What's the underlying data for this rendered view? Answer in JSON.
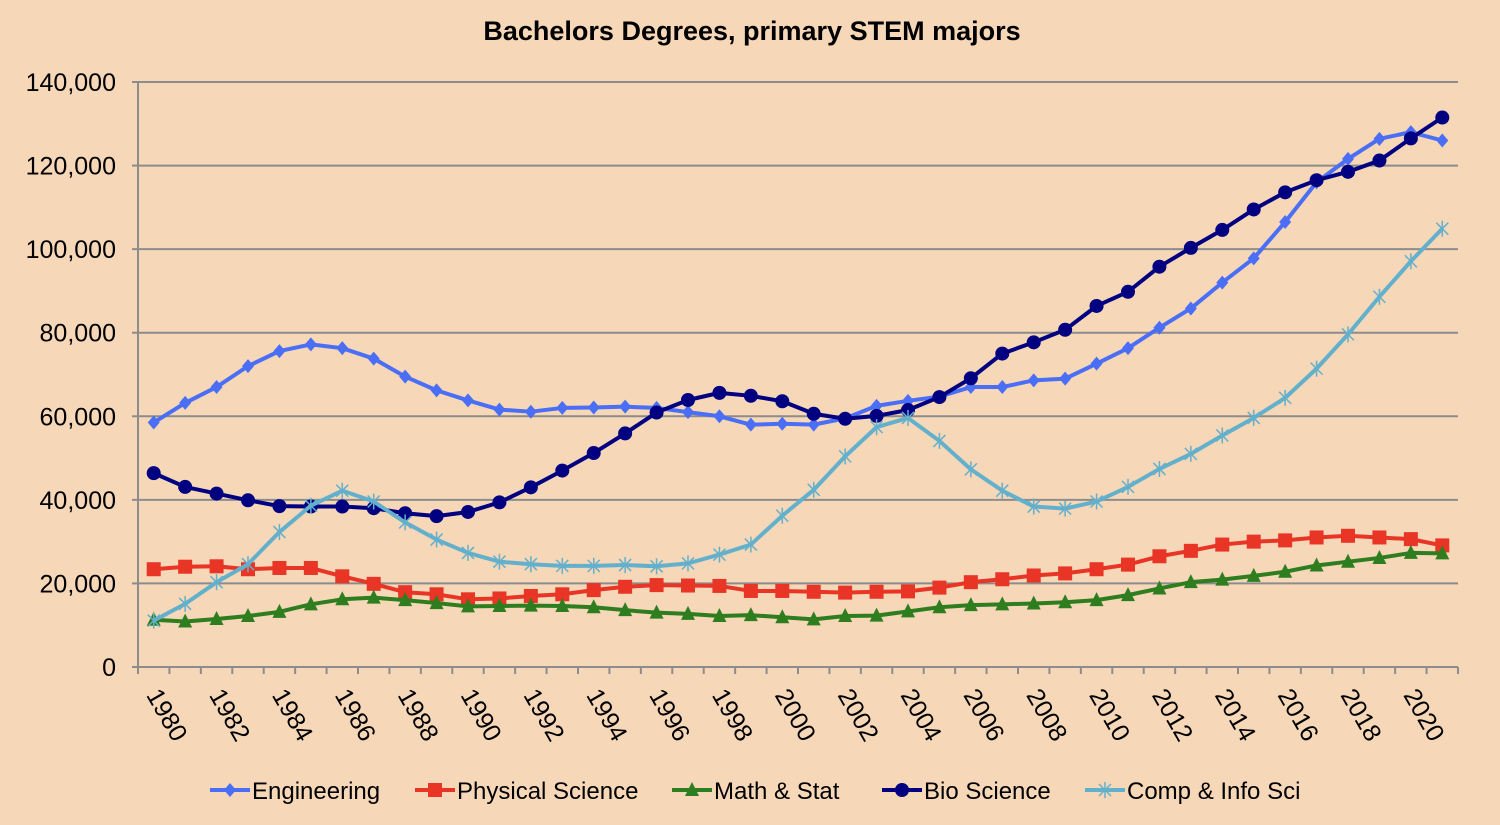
{
  "chart_data": {
    "type": "line",
    "title": "Bachelors Degrees, primary STEM majors",
    "xlabel": "",
    "ylabel": "",
    "ylim": [
      0,
      140000
    ],
    "yticks": [
      "0",
      "20,000",
      "40,000",
      "60,000",
      "80,000",
      "100,000",
      "120,000",
      "140,000"
    ],
    "ytick_values": [
      0,
      20000,
      40000,
      60000,
      80000,
      100000,
      120000,
      140000
    ],
    "grid": true,
    "legend": "bottom",
    "x": [
      1980,
      1981,
      1982,
      1983,
      1984,
      1985,
      1986,
      1987,
      1988,
      1989,
      1990,
      1991,
      1992,
      1993,
      1994,
      1995,
      1996,
      1997,
      1998,
      1999,
      2000,
      2001,
      2002,
      2003,
      2004,
      2005,
      2006,
      2007,
      2008,
      2009,
      2010,
      2011,
      2012,
      2013,
      2014,
      2015,
      2016,
      2017,
      2018,
      2019,
      2020,
      2021
    ],
    "xtick_labels": [
      "1980",
      "1982",
      "1984",
      "1986",
      "1988",
      "1990",
      "1992",
      "1994",
      "1996",
      "1998",
      "2000",
      "2002",
      "2004",
      "2006",
      "2008",
      "2010",
      "2012",
      "2014",
      "2016",
      "2018",
      "2020"
    ],
    "series": [
      {
        "name": "Engineering",
        "color": "#4a6ef5",
        "marker": "diamond",
        "values": [
          58500,
          63200,
          67000,
          72000,
          75600,
          77200,
          76300,
          73800,
          69500,
          66200,
          63800,
          61600,
          61100,
          62000,
          62100,
          62300,
          62000,
          61000,
          60000,
          58000,
          58200,
          58000,
          59500,
          62500,
          63700,
          64700,
          67000,
          67000,
          68600,
          69000,
          72600,
          76300,
          81200,
          85800,
          92000,
          97800,
          106500,
          116000,
          121600,
          126400,
          128000,
          126000
        ]
      },
      {
        "name": "Physical Science",
        "color": "#e83526",
        "marker": "square",
        "values": [
          23400,
          24000,
          24100,
          23400,
          23700,
          23700,
          21700,
          19900,
          17900,
          17400,
          16200,
          16400,
          17000,
          17400,
          18400,
          19200,
          19600,
          19500,
          19400,
          18200,
          18200,
          18000,
          17800,
          18000,
          18100,
          19000,
          20300,
          21000,
          21900,
          22400,
          23400,
          24500,
          26500,
          27800,
          29300,
          30000,
          30300,
          31000,
          31400,
          31000,
          30600,
          29100
        ]
      },
      {
        "name": "Math & Stat",
        "color": "#2e7d1e",
        "marker": "triangle",
        "values": [
          11300,
          10900,
          11500,
          12200,
          13200,
          15000,
          16200,
          16600,
          16000,
          15300,
          14500,
          14600,
          14700,
          14600,
          14300,
          13600,
          13000,
          12700,
          12200,
          12400,
          11900,
          11400,
          12200,
          12300,
          13300,
          14300,
          14800,
          15000,
          15200,
          15500,
          16000,
          17200,
          18800,
          20300,
          20900,
          21800,
          22800,
          24300,
          25200,
          26100,
          27300,
          27200
        ]
      },
      {
        "name": "Bio Science",
        "color": "#000080",
        "marker": "circle",
        "values": [
          46400,
          43100,
          41500,
          39900,
          38500,
          38400,
          38400,
          38000,
          36800,
          36100,
          37100,
          39400,
          43000,
          47000,
          51200,
          55900,
          60900,
          63900,
          65600,
          64900,
          63600,
          60600,
          59400,
          60100,
          61500,
          64600,
          69100,
          75000,
          77700,
          80700,
          86400,
          89800,
          95800,
          100300,
          104600,
          109500,
          113600,
          116500,
          118500,
          121200,
          126500,
          131500
        ]
      },
      {
        "name": "Comp & Info Sci",
        "color": "#63b0cc",
        "marker": "star",
        "values": [
          11100,
          15100,
          20300,
          24600,
          32300,
          38600,
          42200,
          39600,
          34600,
          30500,
          27300,
          25200,
          24600,
          24200,
          24200,
          24400,
          24100,
          24800,
          26900,
          29300,
          36200,
          42400,
          50400,
          57400,
          59600,
          54100,
          47300,
          42200,
          38400,
          37900,
          39600,
          43100,
          47400,
          51000,
          55400,
          59600,
          64400,
          71400,
          79600,
          88600,
          97100,
          104900
        ]
      }
    ]
  }
}
